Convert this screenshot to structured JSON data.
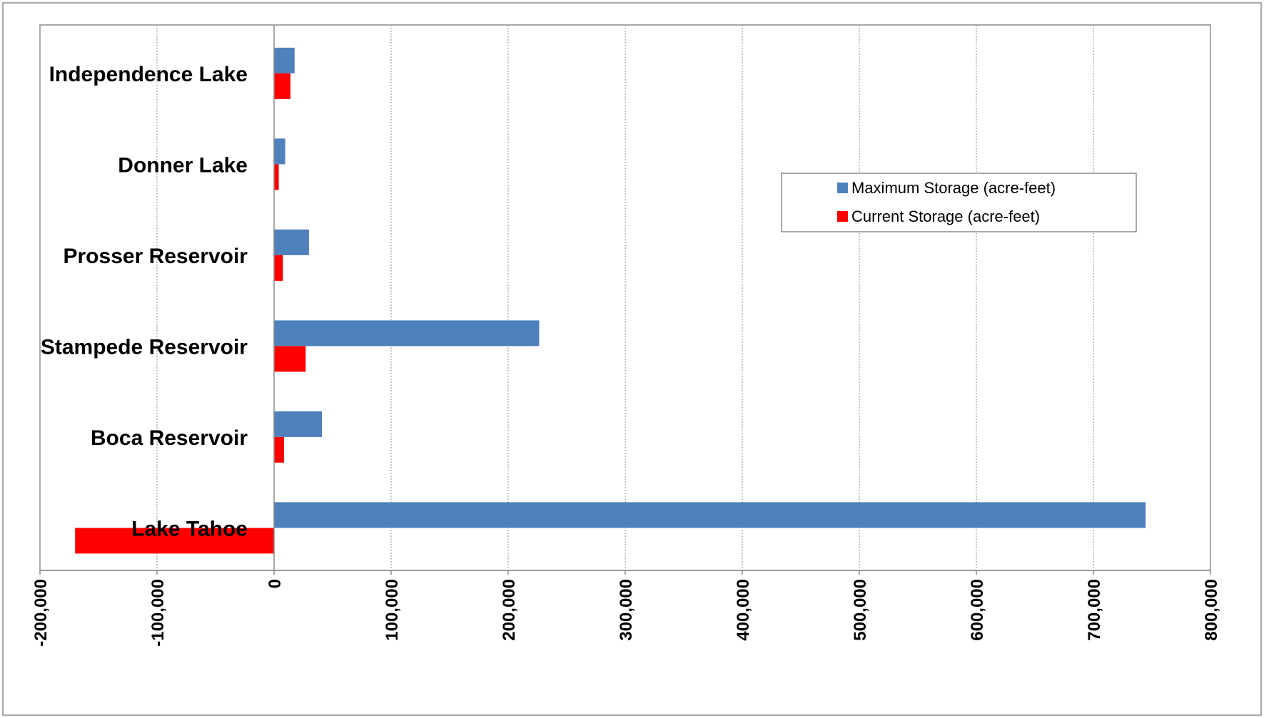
{
  "chart_data": {
    "type": "bar",
    "orientation": "horizontal",
    "categories": [
      "Independence Lake",
      "Donner Lake",
      "Prosser Reservoir",
      "Stampede Reservoir",
      "Boca Reservoir",
      "Lake Tahoe"
    ],
    "series": [
      {
        "name": "Maximum Storage (acre-feet)",
        "color": "#4f81bd",
        "values": [
          17500,
          9500,
          29840,
          226500,
          40870,
          744600
        ]
      },
      {
        "name": "Current Storage (acre-feet)",
        "color": "#ff0000",
        "values": [
          14000,
          4000,
          7500,
          27000,
          8500,
          -170000
        ]
      }
    ],
    "xlim": [
      -200000,
      800000
    ],
    "x_ticks": [
      -200000,
      -100000,
      0,
      100000,
      200000,
      300000,
      400000,
      500000,
      600000,
      700000,
      800000
    ],
    "x_tick_labels": [
      "-200,000",
      "-100,000",
      "0",
      "100,000",
      "200,000",
      "300,000",
      "400,000",
      "500,000",
      "600,000",
      "700,000",
      "800,000"
    ],
    "grid": "vertical-dotted",
    "legend_position": "right"
  }
}
